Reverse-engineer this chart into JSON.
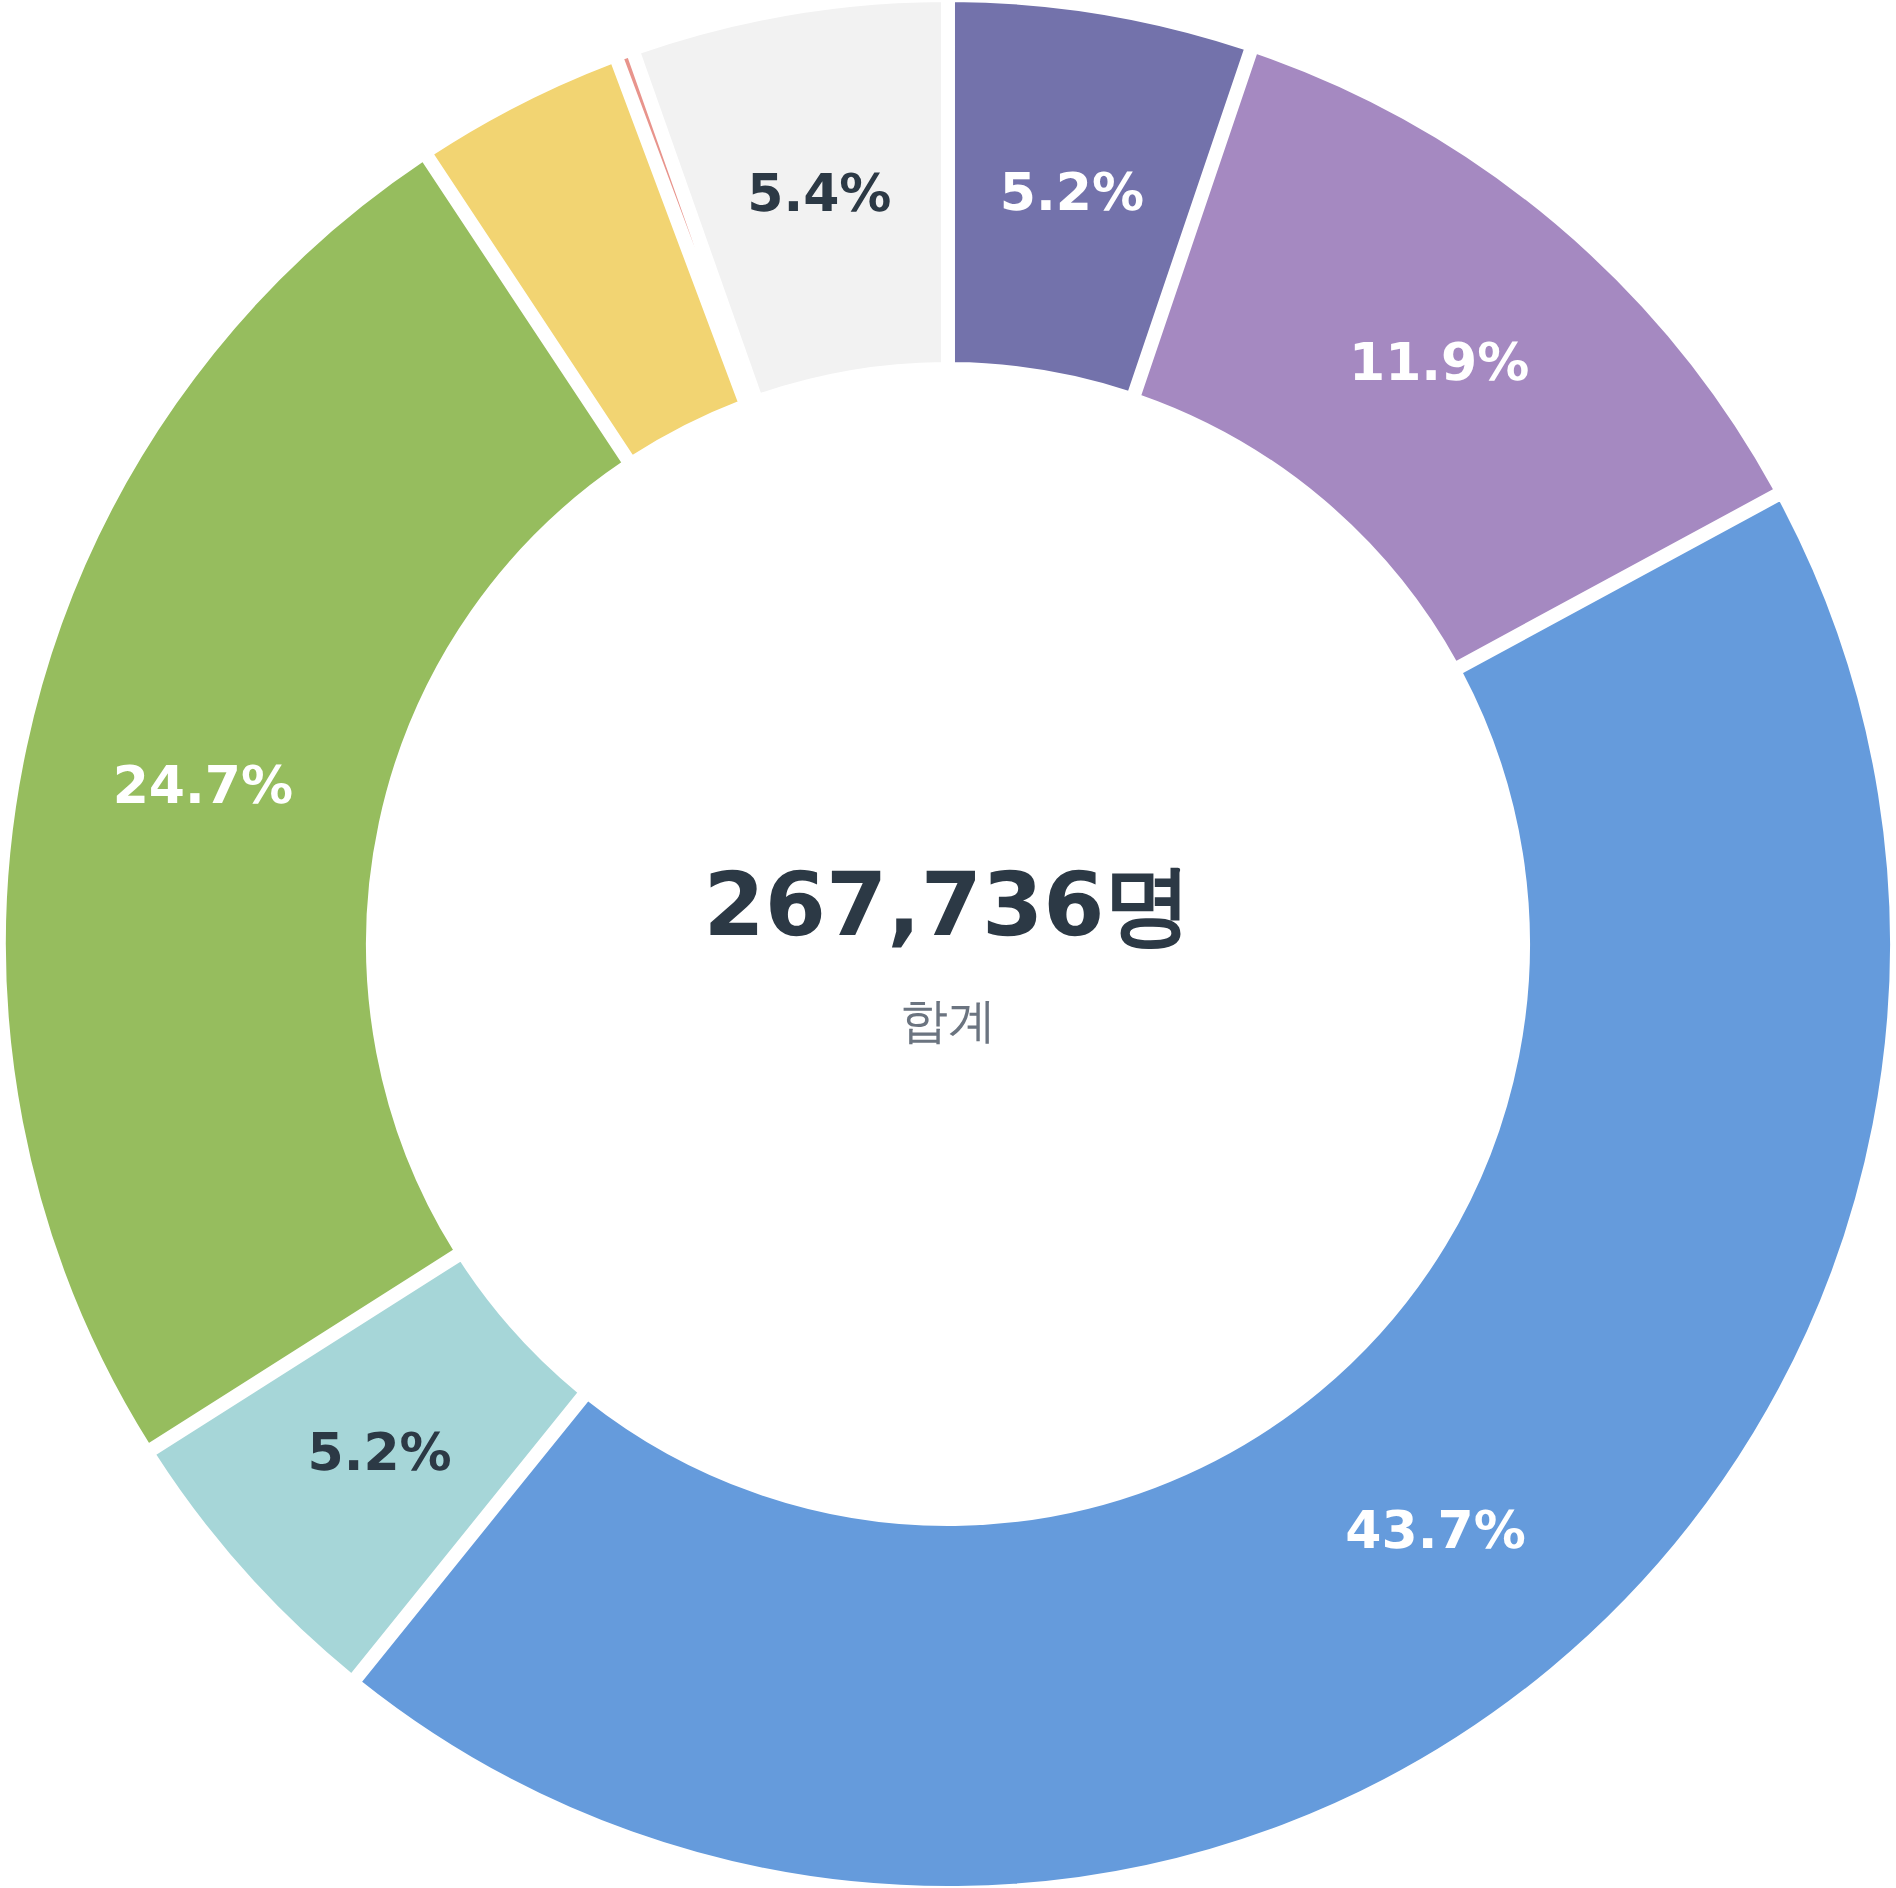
{
  "chart_data": {
    "type": "donut",
    "title": "267,736명",
    "subtitle": "합계",
    "categories": [
      null,
      null,
      null,
      null,
      null,
      null,
      null,
      null
    ],
    "values": [
      5.2,
      11.9,
      43.7,
      5.2,
      24.7,
      3.6,
      0.3,
      5.4
    ],
    "colors": [
      "#7372ab",
      "#a589c1",
      "#659bdc",
      "#a6d6d8",
      "#96bd5e",
      "#f2d472",
      "#e8948c",
      "#f2f2f2"
    ],
    "value_labels": [
      "5.2%",
      "11.9%",
      "43.7%",
      "5.2%",
      "24.7%",
      null,
      null,
      "5.4%"
    ]
  }
}
